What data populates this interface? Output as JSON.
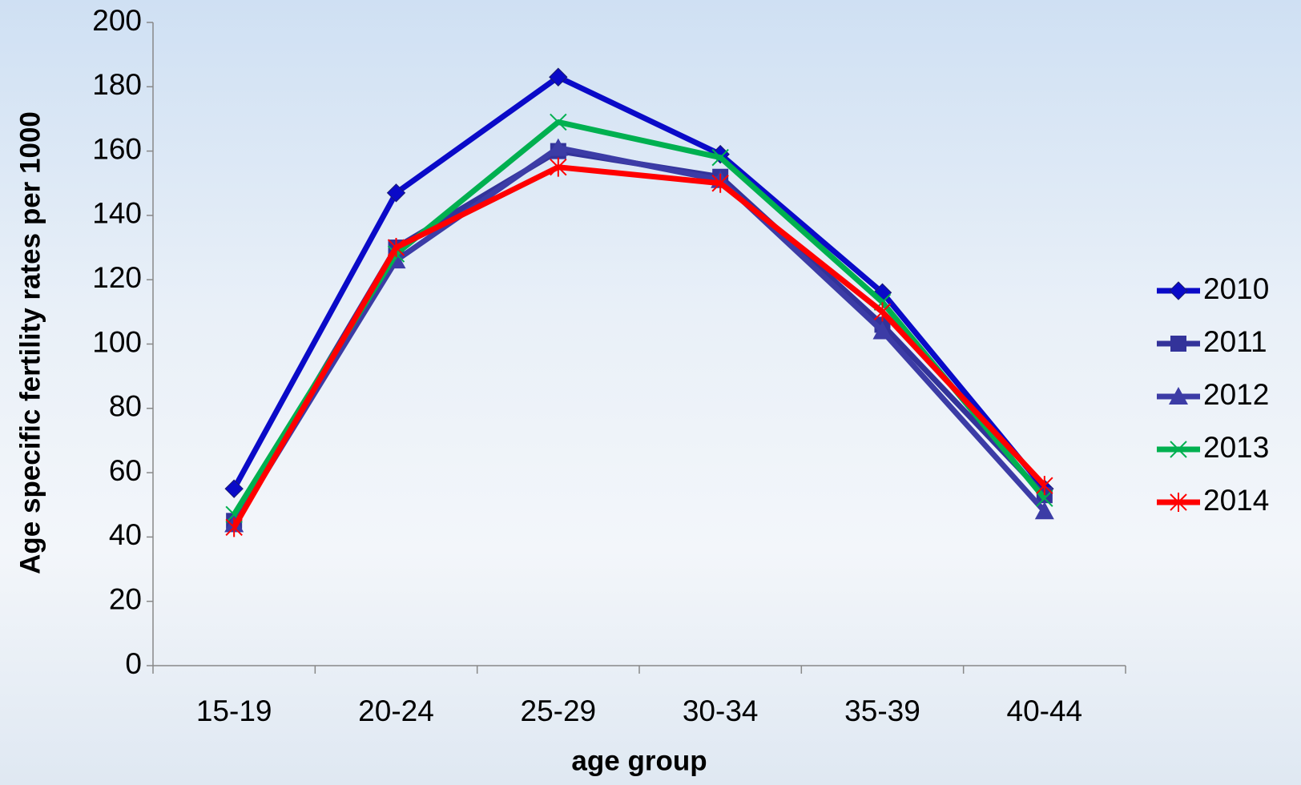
{
  "chart_data": {
    "type": "line",
    "x_label": "age group",
    "y_label": "Age specific fertility rates per 1000",
    "categories": [
      "15-19",
      "20-24",
      "25-29",
      "30-34",
      "35-39",
      "40-44"
    ],
    "series": [
      {
        "name": "2010",
        "color": "#0a0ac8",
        "marker": "diamond",
        "values": [
          55,
          147,
          183,
          159,
          116,
          55
        ]
      },
      {
        "name": "2011",
        "color": "#33339a",
        "marker": "square",
        "values": [
          45,
          130,
          160,
          152,
          106,
          53
        ]
      },
      {
        "name": "2012",
        "color": "#3c3ca6",
        "marker": "triangle",
        "values": [
          44,
          126,
          161,
          151,
          104,
          48
        ]
      },
      {
        "name": "2013",
        "color": "#00b050",
        "marker": "x",
        "values": [
          47,
          128,
          169,
          158,
          113,
          52
        ]
      },
      {
        "name": "2014",
        "color": "#ff0000",
        "marker": "star",
        "values": [
          43,
          130,
          155,
          150,
          110,
          56
        ]
      }
    ],
    "ylim": [
      0,
      200
    ],
    "yticks": [
      0,
      20,
      40,
      60,
      80,
      100,
      120,
      140,
      160,
      180,
      200
    ],
    "legend": "right"
  }
}
